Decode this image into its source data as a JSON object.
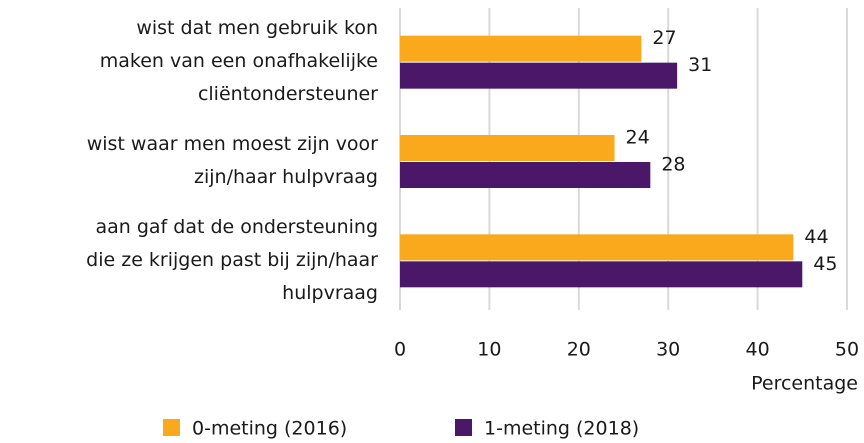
{
  "chart_data": {
    "type": "barh",
    "categories": [
      [
        "wist dat men gebruik kon",
        "maken van een onafhakelijke",
        "cliëntondersteuner"
      ],
      [
        "wist waar men moest zijn voor",
        "zijn/haar hulpvraag"
      ],
      [
        "aan gaf dat de ondersteuning",
        "die ze krijgen past bij zijn/haar",
        "hulpvraag"
      ]
    ],
    "series": [
      {
        "name": "0-meting (2016)",
        "color": "#F9A91B",
        "values": [
          27,
          24,
          44
        ]
      },
      {
        "name": "1-meting (2018)",
        "color": "#4B1869",
        "values": [
          31,
          28,
          45
        ]
      }
    ],
    "xlabel": "Percentage",
    "xlim": [
      0,
      50
    ],
    "xticks": [
      0,
      10,
      20,
      30,
      40,
      50
    ],
    "grid": true,
    "legend": "bottom"
  }
}
